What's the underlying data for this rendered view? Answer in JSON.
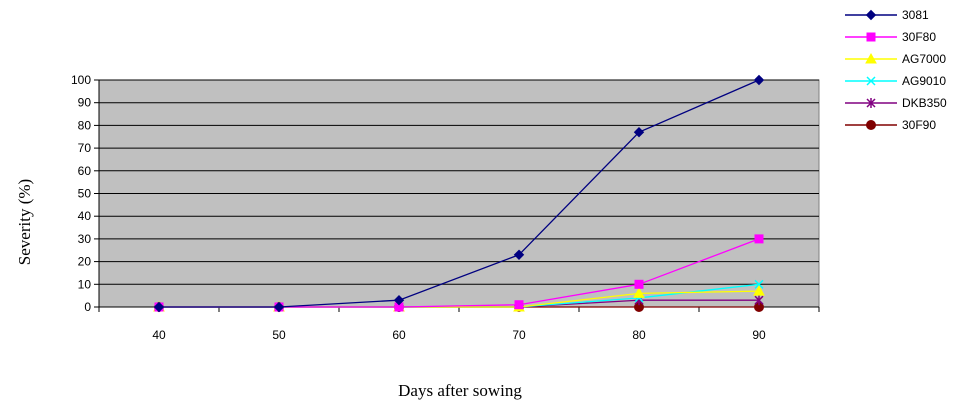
{
  "chart_data": {
    "type": "line",
    "xlabel": "Days after sowing",
    "ylabel": "Severity (%)",
    "x": [
      40,
      50,
      60,
      70,
      80,
      90
    ],
    "ylim": [
      0,
      100
    ],
    "yticks": [
      0,
      10,
      20,
      30,
      40,
      50,
      60,
      70,
      80,
      90,
      100
    ],
    "ytick_labels": [
      "0",
      "10",
      "20",
      "30",
      "40",
      "50",
      "60",
      "70",
      "80",
      "90",
      "100"
    ],
    "grid": "horizontal",
    "plot_background": "#c0c0c0",
    "legend_position": "right",
    "series": [
      {
        "name": "3081",
        "color": "#000080",
        "marker": "diamond",
        "values": [
          0,
          0,
          3,
          23,
          77,
          100
        ]
      },
      {
        "name": "30F80",
        "color": "#ff00ff",
        "marker": "square",
        "values": [
          0,
          0,
          0,
          1,
          10,
          30
        ]
      },
      {
        "name": "AG7000",
        "color": "#ffff00",
        "marker": "triangle",
        "values": [
          0,
          0,
          0,
          0,
          6,
          7
        ]
      },
      {
        "name": "AG9010",
        "color": "#00ffff",
        "marker": "x",
        "values": [
          0,
          0,
          0,
          0,
          4,
          10
        ]
      },
      {
        "name": "DKB350",
        "color": "#800080",
        "marker": "star",
        "values": [
          0,
          0,
          0,
          0,
          3,
          3
        ]
      },
      {
        "name": "30F90",
        "color": "#800000",
        "marker": "circle",
        "values": [
          0,
          0,
          0,
          0,
          0,
          0
        ]
      }
    ]
  }
}
